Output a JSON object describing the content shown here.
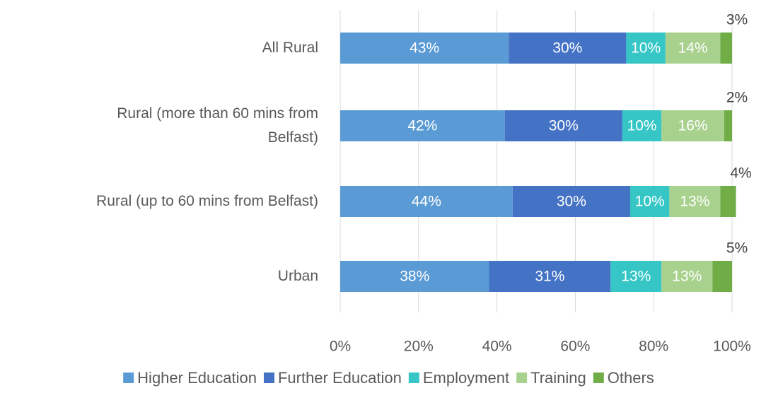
{
  "chart_data": {
    "type": "stacked-bar-horizontal",
    "categories": [
      "All Rural",
      "Rural (more than 60 mins from\nBelfast)",
      "Rural (up to 60 mins from Belfast)",
      "Urban"
    ],
    "series": [
      {
        "name": "Higher Education",
        "color": "#5b9bd5",
        "values": [
          43,
          42,
          44,
          38
        ],
        "value_labels": [
          "43%",
          "42%",
          "44%",
          "38%"
        ]
      },
      {
        "name": "Further Education",
        "color": "#4472c4",
        "values": [
          30,
          30,
          30,
          31
        ],
        "value_labels": [
          "30%",
          "30%",
          "30%",
          "31%"
        ]
      },
      {
        "name": "Employment",
        "color": "#36c6c6",
        "values": [
          10,
          10,
          10,
          13
        ],
        "value_labels": [
          "10%",
          "10%",
          "10%",
          "13%"
        ]
      },
      {
        "name": "Training",
        "color": "#a9d18e",
        "values": [
          14,
          16,
          13,
          13
        ],
        "value_labels": [
          "14%",
          "16%",
          "13%",
          "13%"
        ]
      },
      {
        "name": "Others",
        "color": "#70ad47",
        "values": [
          3,
          2,
          4,
          5
        ],
        "value_labels": [
          "3%",
          "2%",
          "4%",
          "5%"
        ]
      }
    ],
    "xlim": [
      0,
      100
    ],
    "xticks": [
      {
        "value": 0,
        "label": "0%"
      },
      {
        "value": 20,
        "label": "20%"
      },
      {
        "value": 40,
        "label": "40%"
      },
      {
        "value": 60,
        "label": "60%"
      },
      {
        "value": 80,
        "label": "80%"
      },
      {
        "value": 100,
        "label": "100%"
      }
    ],
    "grid": true,
    "legend": "bottom"
  }
}
